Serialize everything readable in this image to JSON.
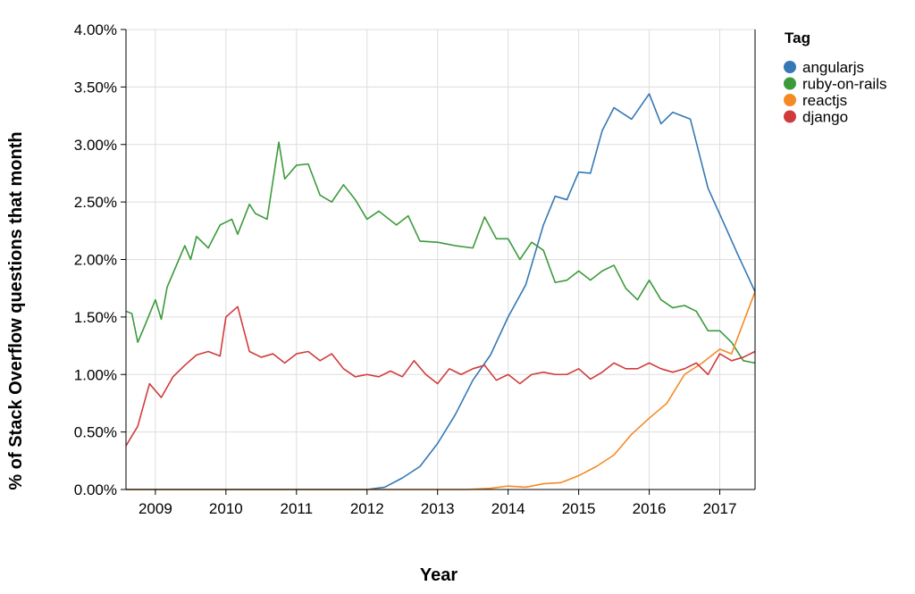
{
  "chart_data": {
    "type": "line",
    "xlabel": "Year",
    "ylabel": "% of Stack Overflow questions that month",
    "xlim": [
      "2008-08",
      "2017-07"
    ],
    "ylim": [
      0,
      4
    ],
    "x_ticks": [
      "2009",
      "2010",
      "2011",
      "2012",
      "2013",
      "2014",
      "2015",
      "2016",
      "2017"
    ],
    "y_ticks": [
      "0.00%",
      "0.50%",
      "1.00%",
      "1.50%",
      "2.00%",
      "2.50%",
      "3.00%",
      "3.50%",
      "4.00%"
    ],
    "grid": true,
    "legend": {
      "title": "Tag",
      "position": "right"
    },
    "series": [
      {
        "name": "angularjs",
        "color": "#3478b5",
        "points": [
          [
            "2008-08",
            0
          ],
          [
            "2012-01",
            0
          ],
          [
            "2012-04",
            0.02
          ],
          [
            "2012-07",
            0.1
          ],
          [
            "2012-10",
            0.2
          ],
          [
            "2013-01",
            0.4
          ],
          [
            "2013-04",
            0.65
          ],
          [
            "2013-07",
            0.95
          ],
          [
            "2013-10",
            1.17
          ],
          [
            "2014-01",
            1.5
          ],
          [
            "2014-04",
            1.78
          ],
          [
            "2014-07",
            2.3
          ],
          [
            "2014-09",
            2.55
          ],
          [
            "2014-11",
            2.52
          ],
          [
            "2015-01",
            2.76
          ],
          [
            "2015-03",
            2.75
          ],
          [
            "2015-05",
            3.12
          ],
          [
            "2015-07",
            3.32
          ],
          [
            "2015-10",
            3.22
          ],
          [
            "2016-01",
            3.44
          ],
          [
            "2016-03",
            3.18
          ],
          [
            "2016-05",
            3.28
          ],
          [
            "2016-08",
            3.22
          ],
          [
            "2016-11",
            2.62
          ],
          [
            "2017-02",
            2.28
          ],
          [
            "2017-04",
            2.05
          ],
          [
            "2017-07",
            1.72
          ]
        ]
      },
      {
        "name": "ruby-on-rails",
        "color": "#3c9a3c",
        "points": [
          [
            "2008-08",
            1.55
          ],
          [
            "2008-09",
            1.53
          ],
          [
            "2008-10",
            1.28
          ],
          [
            "2008-11",
            1.4
          ],
          [
            "2009-01",
            1.65
          ],
          [
            "2009-02",
            1.48
          ],
          [
            "2009-03",
            1.76
          ],
          [
            "2009-05",
            2.0
          ],
          [
            "2009-06",
            2.12
          ],
          [
            "2009-07",
            2.0
          ],
          [
            "2009-08",
            2.2
          ],
          [
            "2009-10",
            2.1
          ],
          [
            "2009-12",
            2.3
          ],
          [
            "2010-02",
            2.35
          ],
          [
            "2010-03",
            2.22
          ],
          [
            "2010-05",
            2.48
          ],
          [
            "2010-06",
            2.4
          ],
          [
            "2010-08",
            2.35
          ],
          [
            "2010-10",
            3.02
          ],
          [
            "2010-11",
            2.7
          ],
          [
            "2011-01",
            2.82
          ],
          [
            "2011-03",
            2.83
          ],
          [
            "2011-05",
            2.56
          ],
          [
            "2011-07",
            2.5
          ],
          [
            "2011-09",
            2.65
          ],
          [
            "2011-11",
            2.52
          ],
          [
            "2012-01",
            2.35
          ],
          [
            "2012-03",
            2.42
          ],
          [
            "2012-06",
            2.3
          ],
          [
            "2012-08",
            2.38
          ],
          [
            "2012-10",
            2.16
          ],
          [
            "2013-01",
            2.15
          ],
          [
            "2013-04",
            2.12
          ],
          [
            "2013-07",
            2.1
          ],
          [
            "2013-09",
            2.37
          ],
          [
            "2013-11",
            2.18
          ],
          [
            "2014-01",
            2.18
          ],
          [
            "2014-03",
            2.0
          ],
          [
            "2014-05",
            2.15
          ],
          [
            "2014-07",
            2.08
          ],
          [
            "2014-09",
            1.8
          ],
          [
            "2014-11",
            1.82
          ],
          [
            "2015-01",
            1.9
          ],
          [
            "2015-03",
            1.82
          ],
          [
            "2015-05",
            1.9
          ],
          [
            "2015-07",
            1.95
          ],
          [
            "2015-09",
            1.75
          ],
          [
            "2015-11",
            1.65
          ],
          [
            "2016-01",
            1.82
          ],
          [
            "2016-03",
            1.65
          ],
          [
            "2016-05",
            1.58
          ],
          [
            "2016-07",
            1.6
          ],
          [
            "2016-09",
            1.55
          ],
          [
            "2016-11",
            1.38
          ],
          [
            "2017-01",
            1.38
          ],
          [
            "2017-03",
            1.28
          ],
          [
            "2017-05",
            1.12
          ],
          [
            "2017-07",
            1.1
          ]
        ]
      },
      {
        "name": "reactjs",
        "color": "#f58a25",
        "points": [
          [
            "2008-08",
            0
          ],
          [
            "2013-06",
            0
          ],
          [
            "2013-10",
            0.01
          ],
          [
            "2014-01",
            0.03
          ],
          [
            "2014-04",
            0.02
          ],
          [
            "2014-07",
            0.05
          ],
          [
            "2014-10",
            0.06
          ],
          [
            "2015-01",
            0.12
          ],
          [
            "2015-04",
            0.2
          ],
          [
            "2015-07",
            0.3
          ],
          [
            "2015-10",
            0.48
          ],
          [
            "2016-01",
            0.62
          ],
          [
            "2016-04",
            0.75
          ],
          [
            "2016-07",
            1.0
          ],
          [
            "2016-10",
            1.1
          ],
          [
            "2017-01",
            1.22
          ],
          [
            "2017-03",
            1.18
          ],
          [
            "2017-05",
            1.45
          ],
          [
            "2017-07",
            1.72
          ]
        ]
      },
      {
        "name": "django",
        "color": "#d03c3c",
        "points": [
          [
            "2008-08",
            0.38
          ],
          [
            "2008-10",
            0.55
          ],
          [
            "2008-12",
            0.92
          ],
          [
            "2009-02",
            0.8
          ],
          [
            "2009-04",
            0.98
          ],
          [
            "2009-06",
            1.08
          ],
          [
            "2009-08",
            1.17
          ],
          [
            "2009-10",
            1.2
          ],
          [
            "2009-12",
            1.16
          ],
          [
            "2010-01",
            1.5
          ],
          [
            "2010-03",
            1.59
          ],
          [
            "2010-05",
            1.2
          ],
          [
            "2010-07",
            1.15
          ],
          [
            "2010-09",
            1.18
          ],
          [
            "2010-11",
            1.1
          ],
          [
            "2011-01",
            1.18
          ],
          [
            "2011-03",
            1.2
          ],
          [
            "2011-05",
            1.12
          ],
          [
            "2011-07",
            1.18
          ],
          [
            "2011-09",
            1.05
          ],
          [
            "2011-11",
            0.98
          ],
          [
            "2012-01",
            1.0
          ],
          [
            "2012-03",
            0.98
          ],
          [
            "2012-05",
            1.03
          ],
          [
            "2012-07",
            0.98
          ],
          [
            "2012-09",
            1.12
          ],
          [
            "2012-11",
            1.0
          ],
          [
            "2013-01",
            0.92
          ],
          [
            "2013-03",
            1.05
          ],
          [
            "2013-05",
            1.0
          ],
          [
            "2013-07",
            1.05
          ],
          [
            "2013-09",
            1.08
          ],
          [
            "2013-11",
            0.95
          ],
          [
            "2014-01",
            1.0
          ],
          [
            "2014-03",
            0.92
          ],
          [
            "2014-05",
            1.0
          ],
          [
            "2014-07",
            1.02
          ],
          [
            "2014-09",
            1.0
          ],
          [
            "2014-11",
            1.0
          ],
          [
            "2015-01",
            1.05
          ],
          [
            "2015-03",
            0.96
          ],
          [
            "2015-05",
            1.02
          ],
          [
            "2015-07",
            1.1
          ],
          [
            "2015-09",
            1.05
          ],
          [
            "2015-11",
            1.05
          ],
          [
            "2016-01",
            1.1
          ],
          [
            "2016-03",
            1.05
          ],
          [
            "2016-05",
            1.02
          ],
          [
            "2016-07",
            1.05
          ],
          [
            "2016-09",
            1.1
          ],
          [
            "2016-11",
            1.0
          ],
          [
            "2017-01",
            1.18
          ],
          [
            "2017-03",
            1.12
          ],
          [
            "2017-05",
            1.15
          ],
          [
            "2017-07",
            1.2
          ]
        ]
      }
    ]
  }
}
